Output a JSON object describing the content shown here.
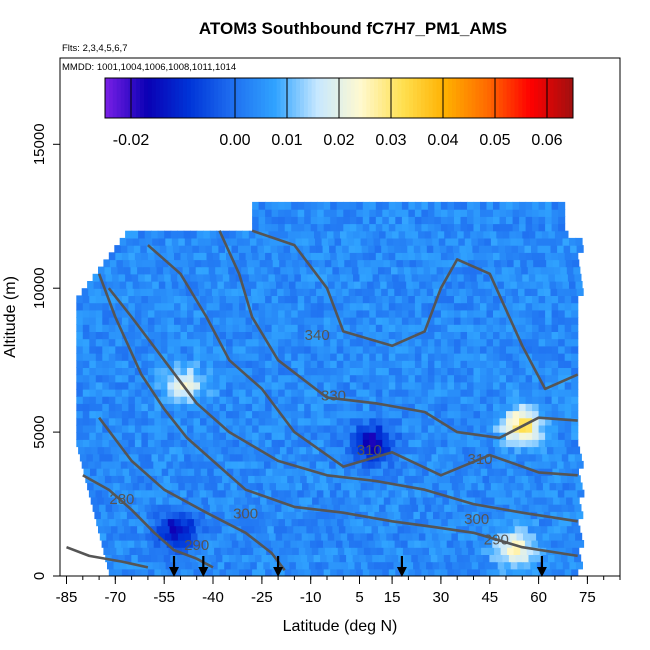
{
  "chart_data": {
    "type": "heatmap",
    "title": "ATOM3 Southbound fC7H7_PM1_AMS",
    "flights_label": "Flts: 2,3,4,5,6,7",
    "dates_label": "MMDD: 1001,1004,1006,1008,1011,1014",
    "xlabel": "Latitude (deg N)",
    "ylabel": "Altitude (m)",
    "xlim": [
      -87,
      85
    ],
    "ylim": [
      0,
      18000
    ],
    "x_ticks": [
      -85,
      -70,
      -55,
      -40,
      -25,
      -10,
      5,
      15,
      30,
      45,
      60,
      75
    ],
    "y_ticks": [
      0,
      5000,
      10000,
      15000
    ],
    "colorbar": {
      "min": -0.025,
      "max": 0.065,
      "ticks": [
        -0.02,
        0.0,
        0.01,
        0.02,
        0.03,
        0.04,
        0.05,
        0.06
      ],
      "tick_labels": [
        "-0.02",
        "0.00",
        "0.01",
        "0.02",
        "0.03",
        "0.04",
        "0.05",
        "0.06"
      ],
      "colors": [
        "#7a1fe6",
        "#0a00b4",
        "#0035d8",
        "#1f6ff0",
        "#30a3ff",
        "#c7e8ff",
        "#fff9d0",
        "#ffe050",
        "#ffb000",
        "#ff6a00",
        "#ff0000",
        "#a01010"
      ]
    },
    "contour_levels": [
      {
        "label": "340",
        "lat": -8,
        "alt": 8200
      },
      {
        "label": "330",
        "lat": -3,
        "alt": 6100
      },
      {
        "label": "310",
        "lat": 8,
        "alt": 4200
      },
      {
        "label": "310",
        "lat": 42,
        "alt": 3900
      },
      {
        "label": "300",
        "lat": -30,
        "alt": 2000
      },
      {
        "label": "300",
        "lat": 41,
        "alt": 1800
      },
      {
        "label": "290",
        "lat": -45,
        "alt": 900
      },
      {
        "label": "290",
        "lat": 47,
        "alt": 1100
      },
      {
        "label": "280",
        "lat": -68,
        "alt": 2500
      }
    ],
    "profile_markers_lat": [
      -52,
      -43,
      -20,
      18,
      61
    ],
    "field": {
      "lat_range": [
        -82,
        72
      ],
      "alt_max": 12900,
      "background": "#3b90f0",
      "background_value": 0.004,
      "hotspots": [
        {
          "lat": 54,
          "alt": 5100,
          "value": 0.032
        },
        {
          "lat": 52,
          "alt": 800,
          "value": 0.026
        },
        {
          "lat": -50,
          "alt": 6500,
          "value": 0.022
        },
        {
          "lat": 8,
          "alt": 4500,
          "value": -0.018
        },
        {
          "lat": -52,
          "alt": 1500,
          "value": -0.016
        }
      ]
    }
  }
}
